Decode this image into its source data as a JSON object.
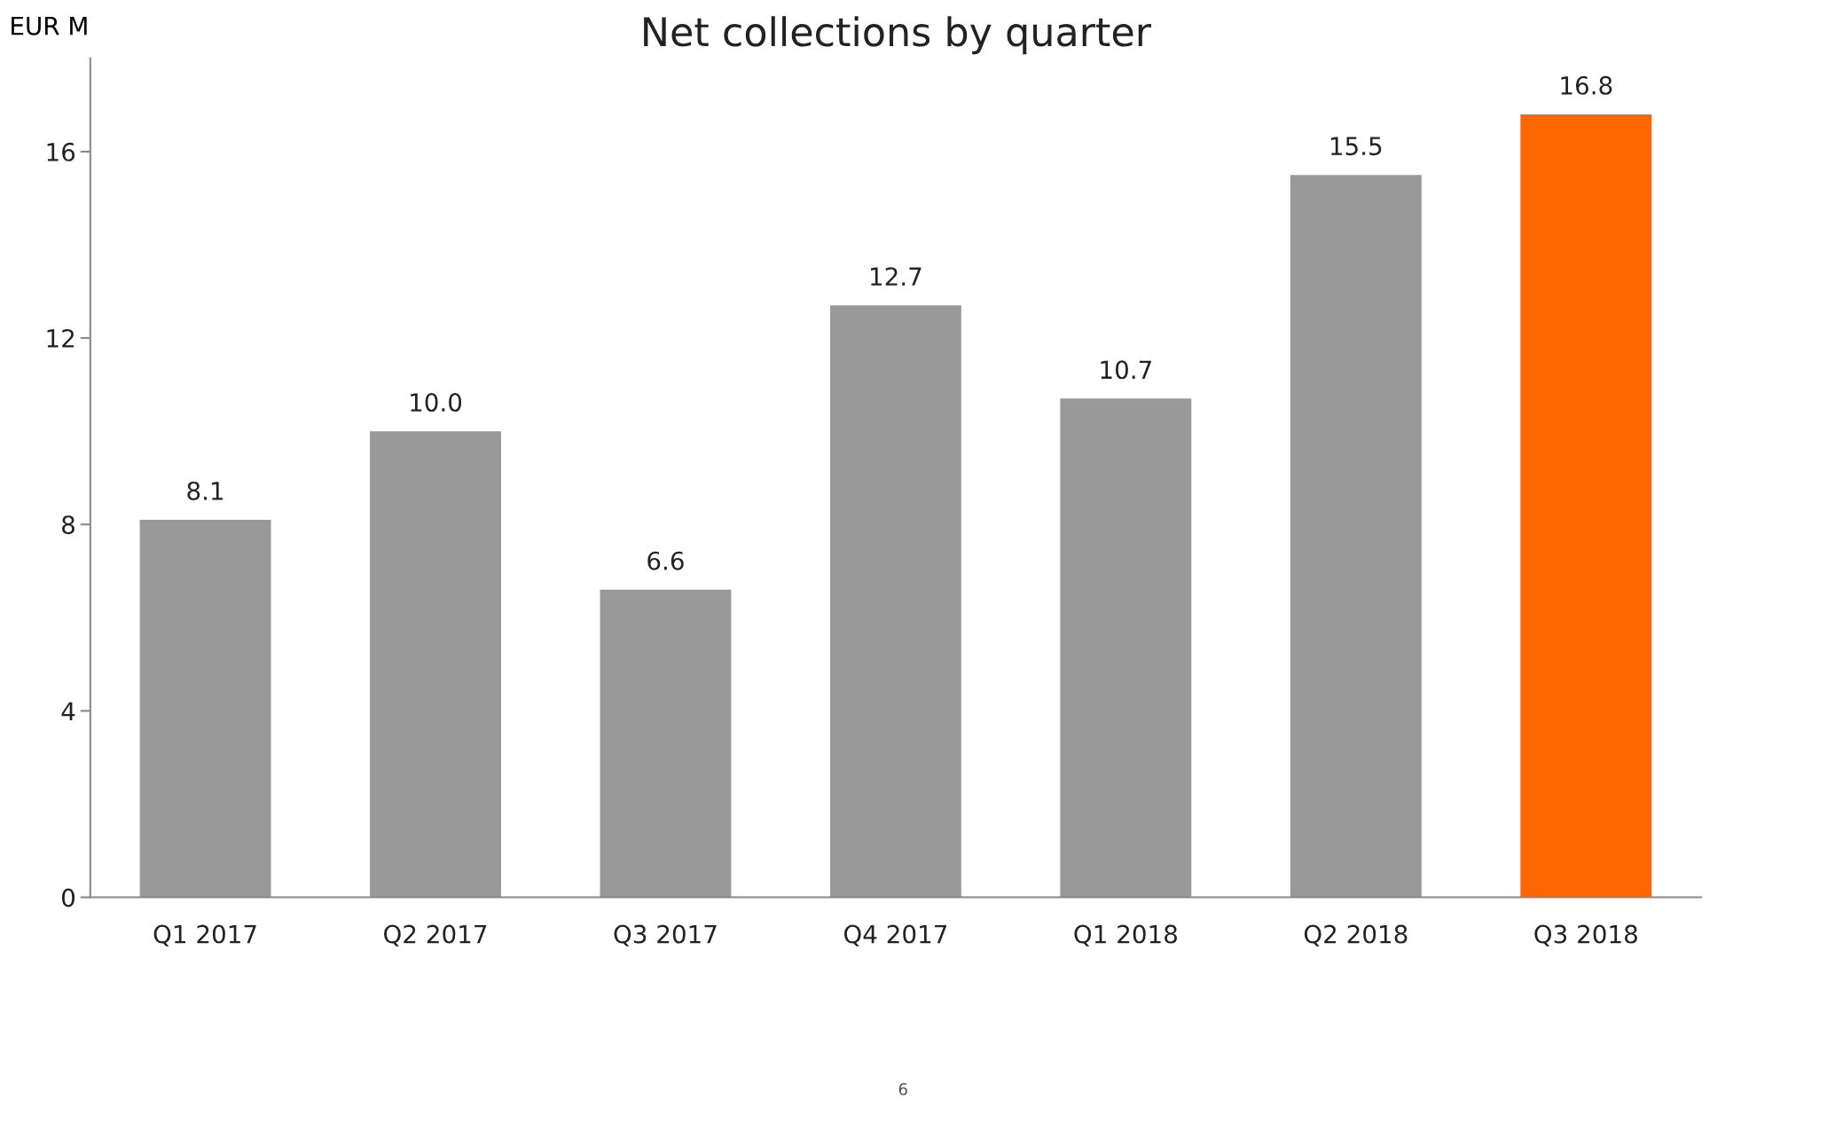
{
  "chart_data": {
    "type": "bar",
    "title": "Net collections by quarter",
    "ylabel": "EUR M",
    "categories": [
      "Q1 2017",
      "Q2 2017",
      "Q3 2017",
      "Q4 2017",
      "Q1 2018",
      "Q2 2018",
      "Q3 2018"
    ],
    "values": [
      8.1,
      10.0,
      6.6,
      12.7,
      10.7,
      15.5,
      16.8
    ],
    "colors": [
      "#999999",
      "#999999",
      "#999999",
      "#999999",
      "#999999",
      "#999999",
      "#ff6600"
    ],
    "value_labels": [
      "8.1",
      "10.0",
      "6.6",
      "12.7",
      "10.7",
      "15.5",
      "16.8"
    ],
    "ylim": [
      0,
      18
    ],
    "yticks": [
      0,
      4,
      8,
      12,
      16
    ],
    "grid": false,
    "legend": false,
    "annotations": [
      "6"
    ]
  }
}
